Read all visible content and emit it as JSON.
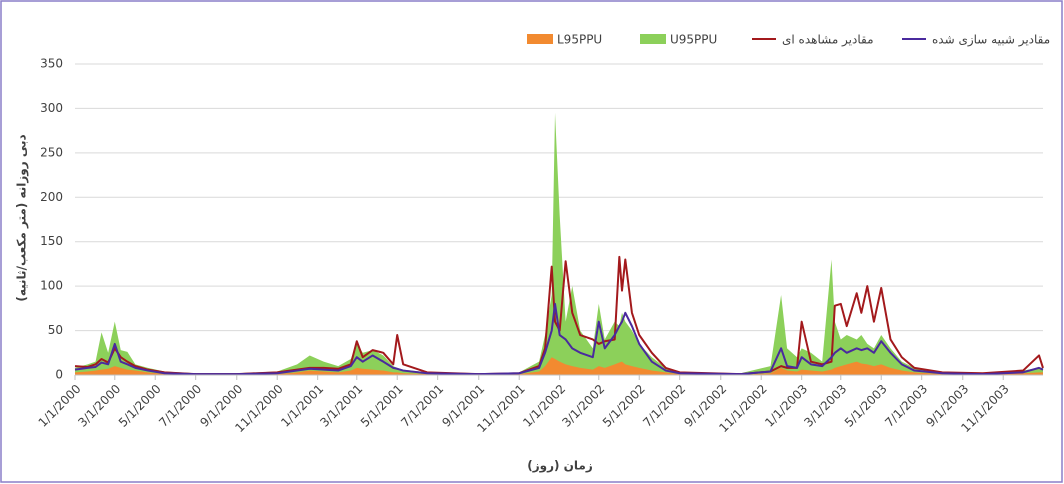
{
  "chart_data": {
    "type": "line",
    "y_label": "دبی روزانه (متر مکعب/ثانیه)",
    "x_label": "زمان (روز)",
    "x": [
      "1/1/2000",
      "1/20/2000",
      "2/1/2000",
      "2/10/2000",
      "2/20/2000",
      "3/1/2000",
      "3/10/2000",
      "3/20/2000",
      "4/1/2000",
      "4/20/2000",
      "5/15/2000",
      "7/1/2000",
      "9/1/2000",
      "11/1/2000",
      "12/1/2000",
      "12/20/2000",
      "1/10/2001",
      "2/1/2001",
      "2/20/2001",
      "3/1/2001",
      "3/10/2001",
      "3/25/2001",
      "4/10/2001",
      "4/25/2001",
      "5/1/2001",
      "5/10/2001",
      "6/15/2001",
      "9/1/2001",
      "11/1/2001",
      "12/1/2001",
      "12/10/2001",
      "12/20/2001",
      "12/25/2001",
      "1/1/2002",
      "1/10/2002",
      "1/20/2002",
      "2/1/2002",
      "2/20/2002",
      "3/1/2002",
      "3/10/2002",
      "3/25/2002",
      "4/1/2002",
      "4/5/2002",
      "4/10/2002",
      "4/20/2002",
      "5/1/2002",
      "5/20/2002",
      "6/10/2002",
      "7/1/2002",
      "10/1/2002",
      "11/15/2002",
      "12/1/2002",
      "12/10/2002",
      "12/25/2002",
      "1/1/2003",
      "1/15/2003",
      "2/1/2003",
      "2/15/2003",
      "2/20/2003",
      "3/1/2003",
      "3/10/2003",
      "3/25/2003",
      "4/1/2003",
      "4/10/2003",
      "4/20/2003",
      "5/1/2003",
      "5/15/2003",
      "6/1/2003",
      "6/20/2003",
      "8/1/2003",
      "10/1/2003",
      "12/1/2003",
      "12/25/2003",
      "12/31/2003"
    ],
    "series": [
      {
        "name": "L95PPU",
        "color": "#f28a30",
        "style": "area",
        "values": [
          3,
          4,
          5,
          6,
          7,
          10,
          8,
          6,
          5,
          3,
          1,
          0,
          0,
          1,
          3,
          5,
          4,
          3,
          5,
          8,
          7,
          6,
          5,
          3,
          3,
          2,
          1,
          0,
          1,
          4,
          10,
          20,
          18,
          15,
          12,
          10,
          8,
          6,
          10,
          8,
          12,
          14,
          15,
          12,
          10,
          8,
          5,
          3,
          1,
          0,
          2,
          8,
          5,
          4,
          6,
          5,
          4,
          6,
          8,
          10,
          12,
          15,
          13,
          12,
          10,
          12,
          8,
          5,
          3,
          1,
          1,
          2,
          3,
          3
        ]
      },
      {
        "name": "U95PPU",
        "color": "#8cd05a",
        "style": "area",
        "values": [
          8,
          12,
          15,
          48,
          25,
          60,
          28,
          26,
          12,
          8,
          4,
          2,
          2,
          4,
          12,
          22,
          15,
          10,
          18,
          35,
          25,
          28,
          22,
          10,
          8,
          6,
          3,
          1,
          3,
          15,
          45,
          90,
          295,
          180,
          60,
          100,
          50,
          30,
          80,
          40,
          60,
          55,
          70,
          60,
          50,
          35,
          20,
          8,
          3,
          2,
          10,
          90,
          30,
          20,
          30,
          25,
          15,
          130,
          60,
          40,
          45,
          40,
          45,
          35,
          30,
          45,
          30,
          15,
          8,
          3,
          2,
          5,
          8,
          8
        ]
      },
      {
        "name": "مقادیر مشاهده ای",
        "color": "#a3191c",
        "style": "line",
        "values": [
          10,
          9,
          12,
          18,
          14,
          30,
          20,
          15,
          10,
          6,
          3,
          1,
          1,
          3,
          6,
          8,
          8,
          7,
          12,
          38,
          20,
          28,
          25,
          12,
          45,
          12,
          3,
          1,
          2,
          10,
          30,
          122,
          60,
          50,
          128,
          70,
          45,
          40,
          35,
          38,
          40,
          133,
          95,
          130,
          70,
          45,
          25,
          8,
          3,
          1,
          4,
          10,
          8,
          8,
          60,
          15,
          12,
          15,
          78,
          80,
          55,
          92,
          70,
          100,
          60,
          98,
          40,
          20,
          8,
          3,
          2,
          5,
          22,
          8
        ]
      },
      {
        "name": "مقادیر شبیه سازی شده",
        "color": "#4a2a9e",
        "style": "line",
        "values": [
          6,
          8,
          9,
          14,
          12,
          35,
          15,
          12,
          8,
          5,
          2,
          1,
          1,
          2,
          5,
          7,
          6,
          5,
          10,
          20,
          15,
          22,
          15,
          8,
          7,
          5,
          2,
          1,
          2,
          8,
          25,
          50,
          80,
          45,
          40,
          30,
          25,
          20,
          60,
          30,
          45,
          55,
          60,
          70,
          55,
          35,
          15,
          5,
          2,
          1,
          4,
          30,
          10,
          8,
          20,
          12,
          10,
          20,
          25,
          30,
          25,
          30,
          28,
          30,
          25,
          38,
          25,
          12,
          5,
          2,
          1,
          3,
          8,
          6
        ]
      }
    ],
    "xlim": [
      "1/1/2000",
      "12/31/2003"
    ],
    "xticks": [
      "1/1/2000",
      "3/1/2000",
      "5/1/2000",
      "7/1/2000",
      "9/1/2000",
      "11/1/2000",
      "1/1/2001",
      "3/1/2001",
      "5/1/2001",
      "7/1/2001",
      "9/1/2001",
      "11/1/2001",
      "1/1/2002",
      "3/1/2002",
      "5/1/2002",
      "7/1/2002",
      "9/1/2002",
      "11/1/2002",
      "1/1/2003",
      "3/1/2003",
      "5/1/2003",
      "7/1/2003",
      "9/1/2003",
      "11/1/2003"
    ],
    "ylim": [
      0,
      350
    ],
    "yticks": [
      0,
      50,
      100,
      150,
      200,
      250,
      300,
      350
    ],
    "grid": true
  }
}
